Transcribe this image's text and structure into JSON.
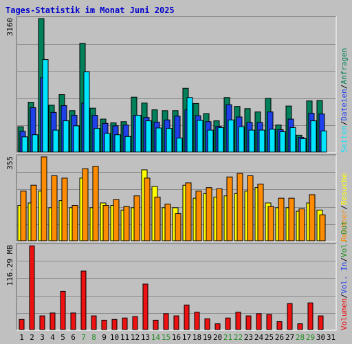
{
  "title": "Tages-Statistik im Monat Juni 2025",
  "colors": {
    "background": "#c0c0c0",
    "title": "#0000cc",
    "grid": "#8a8a8a",
    "hits": "#00805a",
    "files": "#1e40e8",
    "pages": "#00e5ff",
    "visits": "#ffff00",
    "sites": "#ff8c00",
    "kbytes_in": "#1e40e8",
    "kbytes_out": "#228b22",
    "volume": "#ee1111",
    "weekend_day": "#228b22",
    "weekday": "#000000"
  },
  "chart_data": [
    {
      "type": "bar",
      "title": "Tages-Statistik im Monat Juni 2025",
      "ylabel": "3160",
      "ylim": [
        0,
        3160
      ],
      "grid": true,
      "categories": [
        "1",
        "2",
        "3",
        "4",
        "5",
        "6",
        "7",
        "8",
        "9",
        "10",
        "11",
        "12",
        "13",
        "14",
        "15",
        "16",
        "17",
        "18",
        "19",
        "20",
        "21",
        "22",
        "23",
        "24",
        "25",
        "26",
        "27",
        "28",
        "29",
        "30",
        "31"
      ],
      "series": [
        {
          "name": "Anfragen",
          "color": "#00805a",
          "values": [
            600,
            1180,
            3160,
            1110,
            1360,
            980,
            2570,
            1040,
            780,
            690,
            720,
            1300,
            1160,
            1000,
            980,
            980,
            1510,
            1150,
            910,
            740,
            1290,
            1080,
            1030,
            950,
            1270,
            640,
            1090,
            400,
            1210,
            1220,
            0
          ]
        },
        {
          "name": "Dateien",
          "color": "#1e40e8",
          "values": [
            490,
            1050,
            1760,
            940,
            1100,
            870,
            1160,
            870,
            680,
            620,
            640,
            870,
            820,
            710,
            760,
            850,
            1000,
            860,
            720,
            610,
            1120,
            830,
            700,
            700,
            950,
            530,
            780,
            350,
            920,
            900,
            0
          ]
        },
        {
          "name": "Seiten",
          "color": "#00e5ff",
          "values": [
            360,
            410,
            2190,
            520,
            740,
            620,
            1900,
            560,
            440,
            410,
            370,
            870,
            740,
            570,
            560,
            330,
            1290,
            750,
            520,
            580,
            760,
            600,
            520,
            520,
            540,
            480,
            580,
            320,
            740,
            500,
            0
          ]
        }
      ],
      "legend_position": "right"
    },
    {
      "type": "bar",
      "ylabel": "355",
      "ylim": [
        0,
        355
      ],
      "grid": true,
      "categories": [
        "1",
        "2",
        "3",
        "4",
        "5",
        "6",
        "7",
        "8",
        "9",
        "10",
        "11",
        "12",
        "13",
        "14",
        "15",
        "16",
        "17",
        "18",
        "19",
        "20",
        "21",
        "22",
        "23",
        "24",
        "25",
        "26",
        "27",
        "28",
        "29",
        "30",
        "31"
      ],
      "series": [
        {
          "name": "Besuche",
          "color": "#ffff00",
          "values": [
            150,
            160,
            210,
            140,
            170,
            140,
            265,
            140,
            160,
            150,
            130,
            140,
            300,
            230,
            140,
            140,
            235,
            180,
            200,
            185,
            190,
            200,
            210,
            225,
            160,
            140,
            140,
            125,
            160,
            130,
            0
          ]
        },
        {
          "name": "Rechner",
          "color": "#ff8c00",
          "values": [
            210,
            235,
            355,
            275,
            265,
            150,
            305,
            315,
            150,
            175,
            145,
            190,
            265,
            185,
            155,
            115,
            245,
            210,
            225,
            220,
            270,
            285,
            275,
            240,
            145,
            180,
            180,
            135,
            195,
            110,
            0
          ]
        }
      ],
      "legend_position": "right"
    },
    {
      "type": "bar",
      "ylabel": "116.29 MB",
      "ylim": [
        0,
        116.29
      ],
      "grid": true,
      "categories": [
        "1",
        "2",
        "3",
        "4",
        "5",
        "6",
        "7",
        "8",
        "9",
        "10",
        "11",
        "12",
        "13",
        "14",
        "15",
        "16",
        "17",
        "18",
        "19",
        "20",
        "21",
        "22",
        "23",
        "24",
        "25",
        "26",
        "27",
        "28",
        "29",
        "30",
        "31"
      ],
      "series": [
        {
          "name": "Volumen",
          "color": "#ee1111",
          "values": [
            14,
            116,
            19,
            23,
            53,
            23,
            81,
            19,
            13,
            14,
            16,
            18,
            63,
            13,
            22,
            19,
            34,
            24,
            15,
            8,
            16,
            24,
            19,
            22,
            21,
            11,
            36,
            8,
            37,
            19,
            0
          ]
        }
      ],
      "legend_position": "right"
    }
  ],
  "x_axis": {
    "weekend_days": [
      "7",
      "8",
      "14",
      "15",
      "21",
      "22",
      "28",
      "29"
    ]
  },
  "legends": {
    "top": [
      "Anfragen",
      "Dateien",
      "Seiten"
    ],
    "middle": [
      "Besuche",
      "Rechner"
    ],
    "bottom": [
      "Vol. Out",
      "Vol. In",
      "Volumen"
    ],
    "separator": "/"
  }
}
